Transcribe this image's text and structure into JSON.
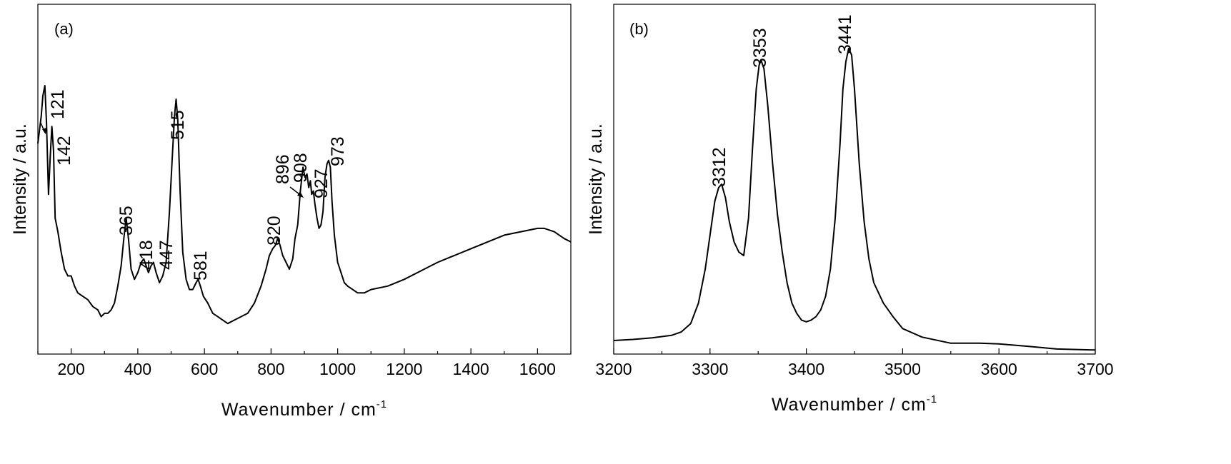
{
  "chart_data": [
    {
      "type": "line",
      "panel_label": "(a)",
      "xlabel": "Wavenumber / cm",
      "xlabel_sup": "-1",
      "ylabel": "Intensity / a.u.",
      "xlim": [
        100,
        1700
      ],
      "ylim": [
        0,
        100
      ],
      "y_ticklabels_shown": false,
      "xticks": [
        200,
        400,
        600,
        800,
        1000,
        1200,
        1400,
        1600
      ],
      "xtick_labels": [
        "200",
        "400",
        "600",
        "800",
        "1000",
        "1200",
        "1400",
        "1600"
      ],
      "series": [
        {
          "x": [
            100,
            110,
            115,
            121,
            126,
            132,
            137,
            142,
            147,
            152,
            160,
            170,
            180,
            190,
            200,
            210,
            220,
            235,
            250,
            265,
            280,
            290,
            300,
            310,
            320,
            330,
            340,
            350,
            358,
            365,
            372,
            380,
            390,
            400,
            410,
            418,
            425,
            432,
            440,
            447,
            455,
            465,
            475,
            485,
            495,
            503,
            510,
            515,
            520,
            527,
            535,
            545,
            555,
            565,
            575,
            581,
            588,
            597,
            610,
            625,
            640,
            655,
            670,
            690,
            710,
            730,
            750,
            770,
            785,
            795,
            805,
            813,
            820,
            827,
            835,
            845,
            855,
            865,
            872,
            880,
            888,
            896,
            902,
            908,
            913,
            918,
            922,
            927,
            932,
            938,
            944,
            950,
            956,
            962,
            968,
            973,
            978,
            983,
            990,
            1000,
            1010,
            1020,
            1030,
            1045,
            1060,
            1080,
            1100,
            1150,
            1200,
            1300,
            1400,
            1500,
            1550,
            1600,
            1620,
            1650,
            1680,
            1700
          ],
          "y": [
            62,
            70,
            76,
            79,
            68,
            47,
            58,
            67,
            60,
            40,
            36,
            30,
            25,
            23,
            23,
            20,
            18,
            17,
            16,
            14,
            13,
            11,
            12,
            12,
            13,
            15,
            20,
            26,
            34,
            40,
            34,
            25,
            22,
            24,
            27,
            28,
            26,
            24,
            26,
            27,
            24,
            21,
            23,
            27,
            42,
            57,
            70,
            75,
            69,
            48,
            30,
            22,
            19,
            19,
            21,
            22,
            20,
            17,
            15,
            12,
            11,
            10,
            9,
            10,
            11,
            12,
            15,
            20,
            25,
            29,
            31,
            32,
            34,
            32,
            29,
            27,
            25,
            28,
            34,
            38,
            48,
            55,
            52,
            53,
            49,
            51,
            47,
            48,
            44,
            40,
            37,
            38,
            42,
            52,
            56,
            57,
            55,
            45,
            35,
            27,
            24,
            21,
            20,
            19,
            18,
            18,
            19,
            20,
            22,
            27,
            31,
            35,
            36,
            37,
            37,
            36,
            34,
            33
          ]
        }
      ],
      "annotations": [
        "121",
        "142",
        "365",
        "418",
        "447",
        "515",
        "581",
        "820",
        "896",
        "908",
        "927",
        "973"
      ]
    },
    {
      "type": "line",
      "panel_label": "(b)",
      "xlabel": "Wavenumber / cm",
      "xlabel_sup": "-1",
      "ylabel": "Intensity / a.u.",
      "xlim": [
        3200,
        3700
      ],
      "ylim": [
        0,
        100
      ],
      "y_ticklabels_shown": false,
      "xticks": [
        3200,
        3300,
        3400,
        3500,
        3600,
        3700
      ],
      "xtick_labels": [
        "3200",
        "3300",
        "3400",
        "3500",
        "3600",
        "3700"
      ],
      "series": [
        {
          "x": [
            3200,
            3220,
            3240,
            3260,
            3270,
            3280,
            3288,
            3295,
            3300,
            3305,
            3309,
            3312,
            3316,
            3320,
            3325,
            3330,
            3335,
            3340,
            3344,
            3348,
            3351,
            3353,
            3356,
            3360,
            3365,
            3370,
            3375,
            3380,
            3385,
            3390,
            3395,
            3400,
            3405,
            3410,
            3415,
            3420,
            3425,
            3430,
            3435,
            3438,
            3441,
            3444,
            3447,
            3450,
            3455,
            3460,
            3465,
            3470,
            3480,
            3490,
            3500,
            3520,
            3550,
            3580,
            3600,
            3630,
            3660,
            3700
          ],
          "y": [
            4,
            4.3,
            4.8,
            5.5,
            6.5,
            9,
            15,
            25,
            35,
            45,
            49,
            50,
            46,
            39,
            33,
            30,
            29,
            40,
            60,
            78,
            85,
            86.5,
            84,
            73,
            56,
            41,
            30,
            21,
            15,
            12,
            10,
            9.5,
            10,
            11,
            13,
            17,
            25,
            40,
            62,
            78,
            86,
            90,
            88,
            78,
            56,
            39,
            28,
            21,
            15,
            11,
            7.5,
            5,
            3.2,
            3.2,
            3,
            2.3,
            1.5,
            1.2
          ]
        }
      ],
      "annotations": [
        "3312",
        "3353",
        "3441"
      ]
    }
  ]
}
